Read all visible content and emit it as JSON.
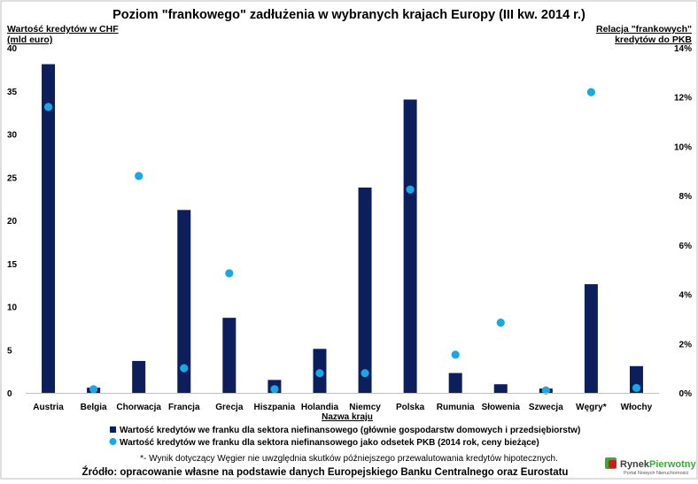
{
  "chart_data": {
    "type": "bar",
    "title": "Poziom \"frankowego\" zadłużenia w wybranych krajach Europy (III kw. 2014 r.)",
    "y_left_label": [
      "Wartość kredytów w CHF",
      "(mld euro)"
    ],
    "y_right_label": [
      "Relacja \"frankowych\"",
      "kredytów do PKB"
    ],
    "xlabel": "Nazwa kraju",
    "ylim_left": [
      0,
      40
    ],
    "ylim_right": [
      0,
      14
    ],
    "yticks_left": [
      "0",
      "5",
      "10",
      "15",
      "20",
      "25",
      "30",
      "35",
      "40"
    ],
    "yticks_right": [
      "0%",
      "2%",
      "4%",
      "6%",
      "8%",
      "10%",
      "12%",
      "14%"
    ],
    "categories": [
      "Austria",
      "Belgia",
      "Chorwacja",
      "Francja",
      "Grecja",
      "Hiszpania",
      "Holandia",
      "Niemcy",
      "Polska",
      "Rumunia",
      "Słowenia",
      "Szwecja",
      "Węgry*",
      "Włochy"
    ],
    "series": [
      {
        "name": "Wartość kredytów we franku dla sektora niefinansowego (głównie gospodarstw domowych i przedsiębiorstw)",
        "type": "bar",
        "axis": "left",
        "color": "#0c1f5c",
        "values": [
          38.1,
          0.6,
          3.7,
          21.2,
          8.7,
          1.5,
          5.1,
          23.8,
          34.0,
          2.3,
          1.0,
          0.5,
          12.6,
          3.1
        ]
      },
      {
        "name": "Wartość kredytów we franku dla sektora niefinansowego jako odsetek PKB (2014 rok, ceny bieżące)",
        "type": "scatter",
        "axis": "right",
        "color": "#1aa7e6",
        "values": [
          11.6,
          0.15,
          8.8,
          1.0,
          4.85,
          0.15,
          0.8,
          0.8,
          8.25,
          1.55,
          2.85,
          0.1,
          12.2,
          0.2
        ]
      }
    ],
    "grid": false,
    "legend_position": "bottom"
  },
  "footnote": "*- Wynik dotyczący Węgier nie uwzględnia skutków późniejszego przewalutowania kredytów hipotecznych.",
  "source": "Źródło: opracowanie własne na podstawie danych Europejskiego Banku Centralnego oraz Eurostatu",
  "logo": {
    "name_part1": "Rynek",
    "name_part2": "Pierwotny",
    "tagline": "Portal Nowych Nieruchomości"
  }
}
